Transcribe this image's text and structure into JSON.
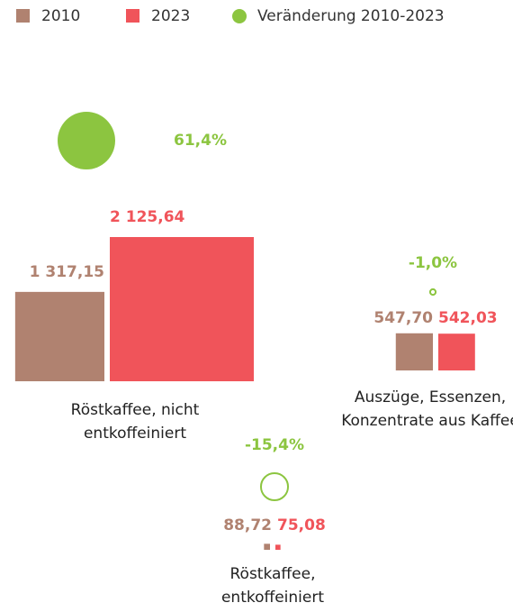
{
  "chart_data": {
    "type": "square-bubble",
    "categories": [
      "Röstkaffee, nicht entkoffeiniert",
      "Röstkaffee, entkoffeiniert",
      "Auszüge, Essenzen, Konzentrate aus Kaffee"
    ],
    "series": [
      {
        "name": "2010",
        "color": "#b08270",
        "values": [
          1317.15,
          88.72,
          547.7
        ],
        "value_labels": [
          "1 317,15",
          "88,72",
          "547,70"
        ]
      },
      {
        "name": "2023",
        "color": "#f0545a",
        "values": [
          2125.64,
          75.08,
          542.03
        ],
        "value_labels": [
          "2 125,64",
          "75,08",
          "542,03"
        ]
      },
      {
        "name": "Veränderung 2010-2023",
        "color": "#8cc540",
        "values": [
          61.4,
          -15.4,
          -1.0
        ],
        "value_labels": [
          "61,4%",
          "-15,4%",
          "-1,0%"
        ]
      }
    ]
  }
}
